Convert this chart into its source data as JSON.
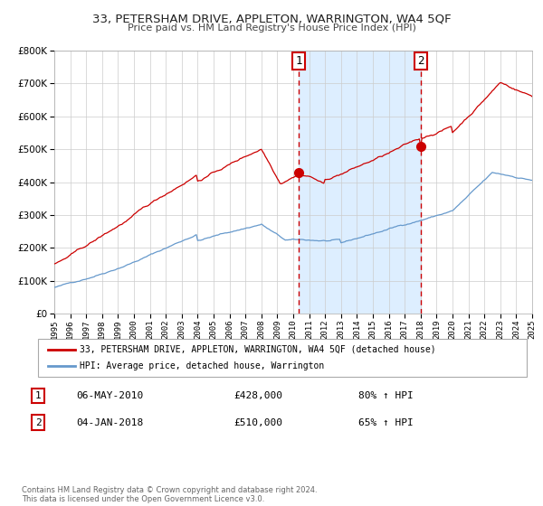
{
  "title": "33, PETERSHAM DRIVE, APPLETON, WARRINGTON, WA4 5QF",
  "subtitle": "Price paid vs. HM Land Registry's House Price Index (HPI)",
  "legend_label_red": "33, PETERSHAM DRIVE, APPLETON, WARRINGTON, WA4 5QF (detached house)",
  "legend_label_blue": "HPI: Average price, detached house, Warrington",
  "sale1_label": "1",
  "sale1_date": "06-MAY-2010",
  "sale1_price": "£428,000",
  "sale1_hpi": "80% ↑ HPI",
  "sale1_year": 2010.35,
  "sale1_value": 428000,
  "sale2_label": "2",
  "sale2_date": "04-JAN-2018",
  "sale2_price": "£510,000",
  "sale2_hpi": "65% ↑ HPI",
  "sale2_year": 2018.01,
  "sale2_value": 510000,
  "ylim": [
    0,
    800000
  ],
  "xlim_start": 1995,
  "xlim_end": 2025,
  "yticks": [
    0,
    100000,
    200000,
    300000,
    400000,
    500000,
    600000,
    700000,
    800000
  ],
  "ytick_labels": [
    "£0",
    "£100K",
    "£200K",
    "£300K",
    "£400K",
    "£500K",
    "£600K",
    "£700K",
    "£800K"
  ],
  "xticks": [
    1995,
    1996,
    1997,
    1998,
    1999,
    2000,
    2001,
    2002,
    2003,
    2004,
    2005,
    2006,
    2007,
    2008,
    2009,
    2010,
    2011,
    2012,
    2013,
    2014,
    2015,
    2016,
    2017,
    2018,
    2019,
    2020,
    2021,
    2022,
    2023,
    2024,
    2025
  ],
  "red_color": "#cc0000",
  "blue_color": "#6699cc",
  "shade_color": "#ddeeff",
  "background_color": "#ffffff",
  "grid_color": "#cccccc",
  "footnote": "Contains HM Land Registry data © Crown copyright and database right 2024.\nThis data is licensed under the Open Government Licence v3.0."
}
